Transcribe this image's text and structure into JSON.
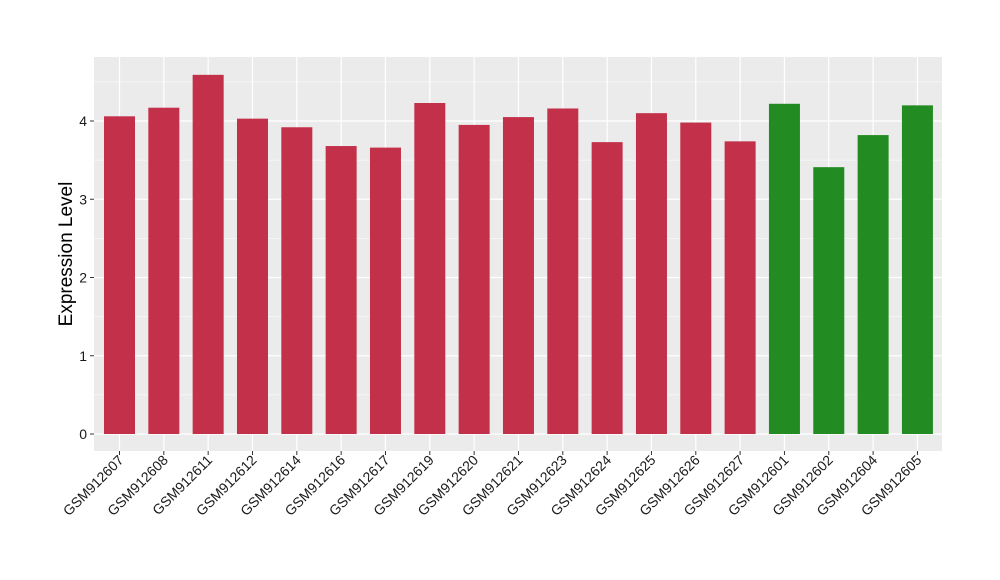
{
  "chart_data": {
    "type": "bar",
    "title": "",
    "xlabel": "",
    "ylabel": "Expression Level",
    "ylim": [
      0,
      4.8
    ],
    "yticks": [
      0,
      1,
      2,
      3,
      4
    ],
    "grid": true,
    "legend": "none",
    "categories": [
      "GSM912607",
      "GSM912608",
      "GSM912611",
      "GSM912612",
      "GSM912614",
      "GSM912616",
      "GSM912617",
      "GSM912619",
      "GSM912620",
      "GSM912621",
      "GSM912623",
      "GSM912624",
      "GSM912625",
      "GSM912626",
      "GSM912627",
      "GSM912601",
      "GSM912602",
      "GSM912604",
      "GSM912605"
    ],
    "values": [
      4.06,
      4.17,
      4.59,
      4.03,
      3.92,
      3.68,
      3.66,
      4.23,
      3.95,
      4.05,
      4.16,
      3.73,
      4.1,
      3.98,
      3.74,
      4.22,
      3.41,
      3.82,
      4.2
    ],
    "groups": [
      "red",
      "red",
      "red",
      "red",
      "red",
      "red",
      "red",
      "red",
      "red",
      "red",
      "red",
      "red",
      "red",
      "red",
      "red",
      "green",
      "green",
      "green",
      "green"
    ]
  },
  "colors": {
    "red": "#C3304A",
    "green": "#228B22",
    "panel": "#EBEBEB",
    "grid": "#FFFFFF"
  }
}
